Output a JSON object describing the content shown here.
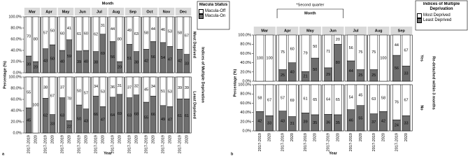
{
  "chart_data": [
    {
      "type": "facet_stacked_bar",
      "panel_label": "a",
      "column_title": "Month",
      "row_title": "Indices of Multiple Deprivation",
      "xlabel": "Year",
      "ylabel": "Percentage (%)",
      "legend_title": "Macula Status",
      "columns": [
        "Mar",
        "Apr",
        "May",
        "Jun",
        "Jul",
        "Aug",
        "Sep",
        "Oct",
        "Nov",
        "Dec"
      ],
      "rows": [
        "Most Deprived",
        "Least Deprived"
      ],
      "categories": [
        "2017-2019",
        "2020"
      ],
      "ylim": [
        0,
        100
      ],
      "yticks": [
        {
          "value": 0,
          "label": "0.0%"
        },
        {
          "value": 20,
          "label": "20.0%"
        },
        {
          "value": 40,
          "label": "40.0%"
        },
        {
          "value": 60,
          "label": "60.0%"
        },
        {
          "value": 80,
          "label": "80.0%"
        },
        {
          "value": 100,
          "label": "100.0%"
        }
      ],
      "series": [
        {
          "name": "Macula-Off",
          "color": "#ffffff",
          "values": [
            [
              [
                70,
                80
              ],
              [
                57,
                50
              ],
              [
                60,
                41
              ],
              [
                61,
                60
              ],
              [
                62,
                31
              ],
              [
                44,
                80
              ],
              [
                49,
                63
              ],
              [
                58,
                44
              ],
              [
                46,
                53
              ],
              [
                58,
                67
              ]
            ],
            [
              [
                55,
                100
              ],
              [
                38,
                67
              ],
              [
                37,
                78
              ],
              [
                50,
                57
              ],
              [
                34,
                53
              ],
              [
                36,
                31
              ],
              [
                37,
                32
              ],
              [
                45,
                34
              ],
              [
                51,
                53
              ],
              [
                39,
                39
              ]
            ]
          ]
        },
        {
          "name": "Macula-On",
          "color": "#6e6e6e",
          "values": [
            [
              [
                30,
                20
              ],
              [
                43,
                50
              ],
              [
                40,
                59
              ],
              [
                39,
                40
              ],
              [
                38,
                69
              ],
              [
                56,
                20
              ],
              [
                51,
                38
              ],
              [
                42,
                56
              ],
              [
                54,
                47
              ],
              [
                42,
                33
              ]
            ],
            [
              [
                45,
                0
              ],
              [
                62,
                33
              ],
              [
                63,
                22
              ],
              [
                50,
                43
              ],
              [
                66,
                47
              ],
              [
                64,
                69
              ],
              [
                63,
                68
              ],
              [
                55,
                66
              ],
              [
                49,
                47
              ],
              [
                61,
                61
              ]
            ]
          ]
        }
      ]
    },
    {
      "type": "facet_stacked_bar",
      "panel_label": "b",
      "column_title": "Month",
      "annotation": "*Second quarter",
      "row_title": "Re-detached within 3 months",
      "xlabel": "Year",
      "ylabel": "Percentage (%)",
      "legend_title": "Indices of Multiple Deprivation",
      "columns": [
        "Mar",
        "Apr",
        "May",
        "Jun",
        "Jul",
        "Aug",
        "Sep"
      ],
      "rows": [
        "Yes",
        "No"
      ],
      "categories": [
        "2017-2019",
        "2020"
      ],
      "ylim": [
        0,
        100
      ],
      "yticks": [
        {
          "value": 0,
          "label": "0.0%"
        },
        {
          "value": 20,
          "label": "20.0%"
        },
        {
          "value": 40,
          "label": "40.0%"
        },
        {
          "value": 60,
          "label": "60.0%"
        },
        {
          "value": 80,
          "label": "80.0%"
        },
        {
          "value": 100,
          "label": "100.0%"
        }
      ],
      "series": [
        {
          "name": "Most Deprived",
          "color": "#ffffff",
          "values": [
            [
              [
                100,
                100
              ],
              [
                75,
                60
              ],
              [
                79,
                50
              ],
              [
                71,
                20
              ],
              [
                56,
                75
              ],
              [
                75,
                100
              ],
              [
                44,
                67
              ]
            ],
            [
              [
                58,
                67
              ],
              [
                57,
                69
              ],
              [
                61,
                65
              ],
              [
                64,
                65
              ],
              [
                54,
                45
              ],
              [
                63,
                58
              ],
              [
                76,
                67
              ]
            ]
          ]
        },
        {
          "name": "Least Deprived",
          "color": "#6e6e6e",
          "values": [
            [
              [
                0,
                0
              ],
              [
                25,
                40
              ],
              [
                21,
                50
              ],
              [
                29,
                80
              ],
              [
                44,
                25
              ],
              [
                25,
                0
              ],
              [
                56,
                33
              ]
            ],
            [
              [
                42,
                33
              ],
              [
                43,
                31
              ],
              [
                39,
                35
              ],
              [
                36,
                35
              ],
              [
                46,
                55
              ],
              [
                37,
                42
              ],
              [
                24,
                33
              ]
            ]
          ]
        }
      ]
    }
  ]
}
